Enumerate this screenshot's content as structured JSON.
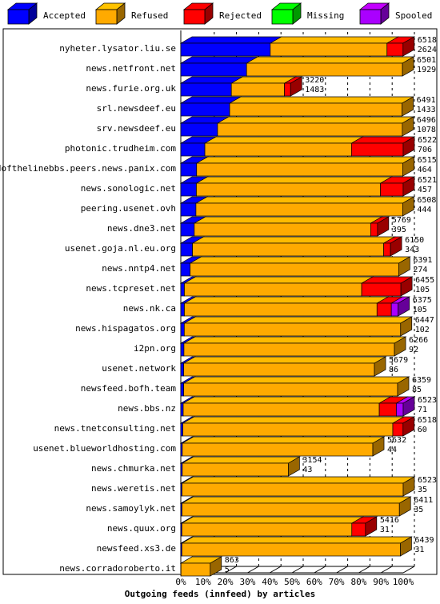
{
  "chart_data": {
    "type": "bar",
    "orientation": "horizontal",
    "stacked": true,
    "three_d": true,
    "title": "Outgoing feeds (innfeed) by articles",
    "x_ticks": [
      "0%",
      "10%",
      "20%",
      "30%",
      "40%",
      "50%",
      "60%",
      "70%",
      "80%",
      "90%",
      "100%"
    ],
    "legend": [
      {
        "name": "Accepted",
        "color": "#0000ff"
      },
      {
        "name": "Refused",
        "color": "#ffaa00"
      },
      {
        "name": "Rejected",
        "color": "#ff0000"
      },
      {
        "name": "Missing",
        "color": "#00ff00"
      },
      {
        "name": "Spooled",
        "color": "#aa00ff"
      }
    ],
    "legend_placement": "top",
    "grid": true,
    "rows": [
      {
        "host": "nyheter.lysator.liu.se",
        "offered": "6518",
        "accepted": "2624",
        "acc": 2624,
        "ref": 3424,
        "rej": 470,
        "mis": 0,
        "spo": 0
      },
      {
        "host": "news.netfront.net",
        "offered": "6501",
        "accepted": "1929",
        "acc": 1929,
        "ref": 4572,
        "rej": 0,
        "mis": 0,
        "spo": 0
      },
      {
        "host": "news.furie.org.uk",
        "offered": "3220",
        "accepted": "1483",
        "acc": 1483,
        "ref": 1557,
        "rej": 180,
        "mis": 0,
        "spo": 0
      },
      {
        "host": "srl.newsdeef.eu",
        "offered": "6491",
        "accepted": "1433",
        "acc": 1433,
        "ref": 5058,
        "rej": 0,
        "mis": 0,
        "spo": 0
      },
      {
        "host": "srv.newsdeef.eu",
        "offered": "6496",
        "accepted": "1078",
        "acc": 1078,
        "ref": 5418,
        "rej": 0,
        "mis": 0,
        "spo": 0
      },
      {
        "host": "photonic.trudheim.com",
        "offered": "6522",
        "accepted": "706",
        "acc": 706,
        "ref": 4300,
        "rej": 1516,
        "mis": 0,
        "spo": 0
      },
      {
        "host": "endofthelinebbs.peers.news.panix.com",
        "offered": "6515",
        "accepted": "464",
        "acc": 464,
        "ref": 6051,
        "rej": 0,
        "mis": 0,
        "spo": 0
      },
      {
        "host": "news.sonologic.net",
        "offered": "6521",
        "accepted": "457",
        "acc": 457,
        "ref": 5400,
        "rej": 664,
        "mis": 0,
        "spo": 0
      },
      {
        "host": "peering.usenet.ovh",
        "offered": "6508",
        "accepted": "444",
        "acc": 444,
        "ref": 6064,
        "rej": 0,
        "mis": 0,
        "spo": 0
      },
      {
        "host": "news.dne3.net",
        "offered": "5769",
        "accepted": "395",
        "acc": 395,
        "ref": 5174,
        "rej": 200,
        "mis": 0,
        "spo": 0
      },
      {
        "host": "usenet.goja.nl.eu.org",
        "offered": "6150",
        "accepted": "343",
        "acc": 343,
        "ref": 5607,
        "rej": 200,
        "mis": 0,
        "spo": 0
      },
      {
        "host": "news.nntp4.net",
        "offered": "6391",
        "accepted": "274",
        "acc": 274,
        "ref": 6117,
        "rej": 0,
        "mis": 0,
        "spo": 0
      },
      {
        "host": "news.tcpreset.net",
        "offered": "6455",
        "accepted": "105",
        "acc": 105,
        "ref": 5200,
        "rej": 1150,
        "mis": 0,
        "spo": 0
      },
      {
        "host": "news.nk.ca",
        "offered": "6375",
        "accepted": "105",
        "acc": 105,
        "ref": 5650,
        "rej": 420,
        "mis": 0,
        "spo": 200
      },
      {
        "host": "news.hispagatos.org",
        "offered": "6447",
        "accepted": "102",
        "acc": 102,
        "ref": 6345,
        "rej": 0,
        "mis": 0,
        "spo": 0
      },
      {
        "host": "i2pn.org",
        "offered": "6266",
        "accepted": "92",
        "acc": 92,
        "ref": 6174,
        "rej": 0,
        "mis": 0,
        "spo": 0
      },
      {
        "host": "usenet.network",
        "offered": "5679",
        "accepted": "86",
        "acc": 86,
        "ref": 5593,
        "rej": 0,
        "mis": 0,
        "spo": 0
      },
      {
        "host": "newsfeed.bofh.team",
        "offered": "6359",
        "accepted": "85",
        "acc": 85,
        "ref": 6274,
        "rej": 0,
        "mis": 0,
        "spo": 0
      },
      {
        "host": "news.bbs.nz",
        "offered": "6523",
        "accepted": "71",
        "acc": 71,
        "ref": 5750,
        "rej": 500,
        "mis": 0,
        "spo": 202
      },
      {
        "host": "news.tnetconsulting.net",
        "offered": "6518",
        "accepted": "60",
        "acc": 60,
        "ref": 6158,
        "rej": 300,
        "mis": 0,
        "spo": 0
      },
      {
        "host": "usenet.blueworldhosting.com",
        "offered": "5632",
        "accepted": "44",
        "acc": 44,
        "ref": 5588,
        "rej": 0,
        "mis": 0,
        "spo": 0
      },
      {
        "host": "news.chmurka.net",
        "offered": "3154",
        "accepted": "43",
        "acc": 43,
        "ref": 3111,
        "rej": 0,
        "mis": 0,
        "spo": 0
      },
      {
        "host": "news.weretis.net",
        "offered": "6523",
        "accepted": "35",
        "acc": 35,
        "ref": 6488,
        "rej": 0,
        "mis": 0,
        "spo": 0
      },
      {
        "host": "news.samoylyk.net",
        "offered": "6411",
        "accepted": "35",
        "acc": 35,
        "ref": 6376,
        "rej": 0,
        "mis": 0,
        "spo": 0
      },
      {
        "host": "news.quux.org",
        "offered": "5416",
        "accepted": "31",
        "acc": 31,
        "ref": 4985,
        "rej": 400,
        "mis": 0,
        "spo": 0
      },
      {
        "host": "newsfeed.xs3.de",
        "offered": "6439",
        "accepted": "31",
        "acc": 31,
        "ref": 6408,
        "rej": 0,
        "mis": 0,
        "spo": 0
      },
      {
        "host": "news.corradoroberto.it",
        "offered": "863",
        "accepted": "5",
        "acc": 5,
        "ref": 858,
        "rej": 0,
        "mis": 0,
        "spo": 0
      }
    ]
  }
}
